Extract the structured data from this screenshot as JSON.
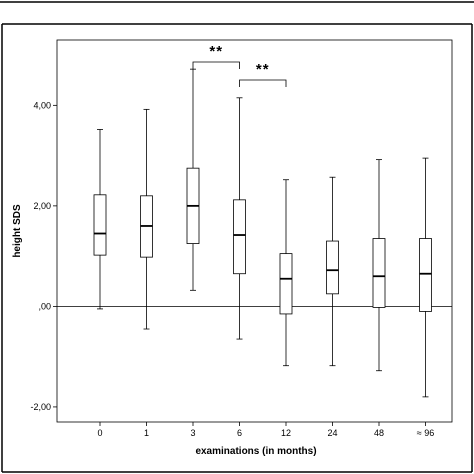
{
  "chart_data": {
    "type": "boxplot",
    "title": "",
    "xlabel": "examinations (in months)",
    "ylabel": "height SDS",
    "categories": [
      "0",
      "1",
      "3",
      "6",
      "12",
      "24",
      "48",
      "≈ 96"
    ],
    "y_ticks": [
      {
        "value": 4.0,
        "label": "4,00"
      },
      {
        "value": 2.0,
        "label": "2,00"
      },
      {
        "value": 0.0,
        "label": ",00"
      },
      {
        "value": -2.0,
        "label": "-2,00"
      }
    ],
    "ylim": [
      -2.3,
      5.3
    ],
    "reference_line": 0.0,
    "grid": false,
    "boxes": [
      {
        "category": "0",
        "min": -0.05,
        "q1": 1.02,
        "median": 1.45,
        "q3": 2.22,
        "max": 3.52
      },
      {
        "category": "1",
        "min": -0.45,
        "q1": 0.98,
        "median": 1.6,
        "q3": 2.2,
        "max": 3.92
      },
      {
        "category": "3",
        "min": 0.32,
        "q1": 1.25,
        "median": 2.0,
        "q3": 2.75,
        "max": 4.72
      },
      {
        "category": "6",
        "min": -0.65,
        "q1": 0.65,
        "median": 1.42,
        "q3": 2.12,
        "max": 4.15
      },
      {
        "category": "12",
        "min": -1.18,
        "q1": -0.15,
        "median": 0.55,
        "q3": 1.05,
        "max": 2.52
      },
      {
        "category": "24",
        "min": -1.18,
        "q1": 0.25,
        "median": 0.72,
        "q3": 1.3,
        "max": 2.57
      },
      {
        "category": "48",
        "min": -1.28,
        "q1": -0.02,
        "median": 0.6,
        "q3": 1.35,
        "max": 2.92
      },
      {
        "category": "≈ 96",
        "min": -1.8,
        "q1": -0.1,
        "median": 0.65,
        "q3": 1.35,
        "max": 2.95
      }
    ],
    "annotations": [
      {
        "label": "**",
        "from": "3",
        "to": "6"
      },
      {
        "label": "**",
        "from": "6",
        "to": "12"
      }
    ]
  }
}
